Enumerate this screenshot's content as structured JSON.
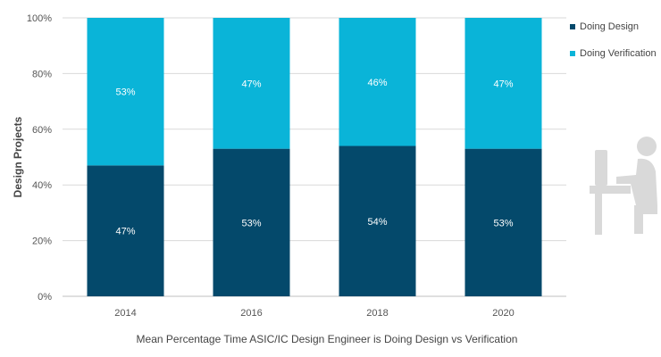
{
  "chart_data": {
    "type": "bar",
    "stacked": true,
    "categories": [
      "2014",
      "2016",
      "2018",
      "2020"
    ],
    "series": [
      {
        "name": "Doing Design",
        "values": [
          47,
          53,
          54,
          53
        ],
        "labels": [
          "47%",
          "53%",
          "54%",
          "53%"
        ],
        "color": "#04496b"
      },
      {
        "name": "Doing Verification",
        "values": [
          53,
          47,
          46,
          47
        ],
        "labels": [
          "53%",
          "47%",
          "46%",
          "47%"
        ],
        "color": "#0ab4d8"
      }
    ],
    "ylabel": "Design Projects",
    "xlabel": "Mean Percentage Time ASIC/IC  Design Engineer is Doing Design vs Verification",
    "ylim": [
      0,
      100
    ],
    "yticks": [
      0,
      20,
      40,
      60,
      80,
      100
    ],
    "ytick_labels": [
      "0%",
      "20%",
      "40%",
      "60%",
      "80%",
      "100%"
    ],
    "grid": true,
    "legend_position": "right"
  },
  "icon": {
    "name": "person-at-desk-icon",
    "color": "#d9d9d9"
  }
}
